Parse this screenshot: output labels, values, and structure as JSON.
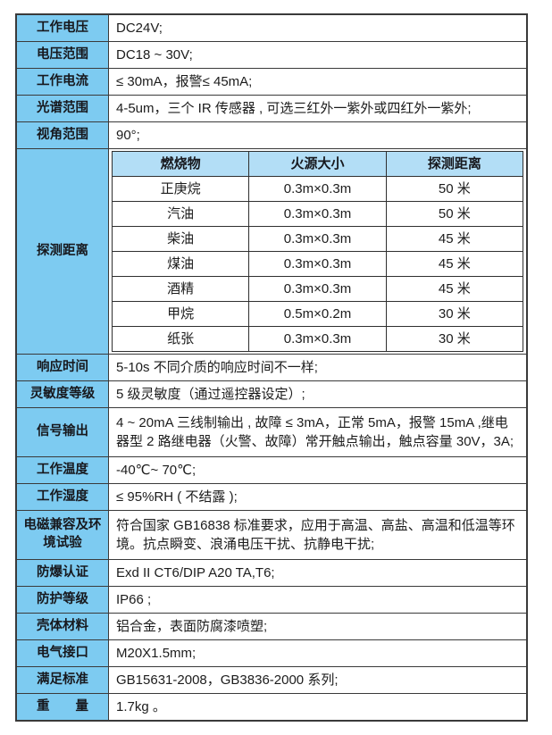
{
  "colors": {
    "label_bg": "#7dcbf1",
    "detect_header_bg": "#b3def6",
    "border": "#3a3a3a",
    "text": "#1c1c1c"
  },
  "rows": [
    {
      "label": "工作电压",
      "value": "DC24V;"
    },
    {
      "label": "电压范围",
      "value": "DC18 ~ 30V;"
    },
    {
      "label": "工作电流",
      "value": "≤ 30mA，报警≤ 45mA;"
    },
    {
      "label": "光谱范围",
      "value": "4-5um，三个 IR 传感器 , 可选三红外一紫外或四红外一紫外;"
    },
    {
      "label": "视角范围",
      "value": "90°;"
    },
    {
      "label": "响应时间",
      "value": "5-10s 不同介质的响应时间不一样;"
    },
    {
      "label": "灵敏度等级",
      "value": "5 级灵敏度（通过遥控器设定）;"
    },
    {
      "label": "信号输出",
      "value": "4 ~ 20mA 三线制输出 , 故障 ≤ 3mA，正常 5mA，报警 15mA ,继电器型 2 路继电器（火警、故障）常开触点输出，触点容量 30V，3A;"
    },
    {
      "label": "工作温度",
      "value": "-40℃~ 70℃;"
    },
    {
      "label": "工作湿度",
      "value": "≤ 95%RH ( 不结露 );"
    },
    {
      "label": "电磁兼容及环境试验",
      "value": "符合国家 GB16838 标准要求，应用于高温、高盐、高温和低温等环境。抗点瞬变、浪涌电压干扰、抗静电干扰;"
    },
    {
      "label": "防爆认证",
      "value": "Exd II CT6/DIP A20 TA,T6;"
    },
    {
      "label": "防护等级",
      "value": "IP66 ;"
    },
    {
      "label": "壳体材料",
      "value": "铝合金，表面防腐漆喷塑;"
    },
    {
      "label": "电气接口",
      "value": "M20X1.5mm;"
    },
    {
      "label": "满足标准",
      "value": "GB15631-2008，GB3836-2000 系列;"
    },
    {
      "label": "重　　量",
      "value": "1.7kg 。"
    }
  ],
  "detection": {
    "label": "探测距离",
    "headers": [
      "燃烧物",
      "火源大小",
      "探测距离"
    ],
    "rows": [
      [
        "正庚烷",
        "0.3m×0.3m",
        "50 米"
      ],
      [
        "汽油",
        "0.3m×0.3m",
        "50 米"
      ],
      [
        "柴油",
        "0.3m×0.3m",
        "45 米"
      ],
      [
        "煤油",
        "0.3m×0.3m",
        "45 米"
      ],
      [
        "酒精",
        "0.3m×0.3m",
        "45 米"
      ],
      [
        "甲烷",
        "0.5m×0.2m",
        "30 米"
      ],
      [
        "纸张",
        "0.3m×0.3m",
        "30 米"
      ]
    ]
  }
}
